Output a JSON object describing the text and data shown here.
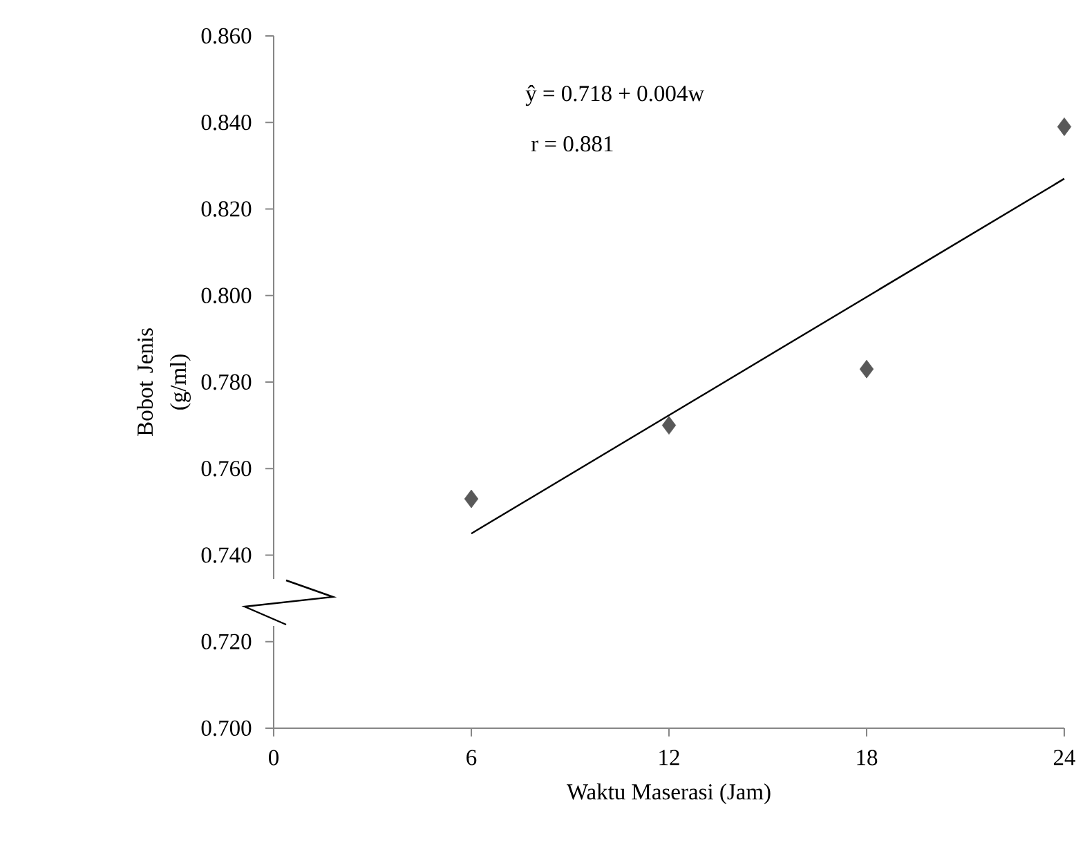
{
  "chart_data": {
    "type": "scatter",
    "xlabel": "Waktu Maserasi (Jam)",
    "ylabel": "Bobot Jenis (g/ml)",
    "x": [
      6,
      12,
      18,
      24
    ],
    "xlim": [
      0,
      24
    ],
    "xticks": [
      0,
      6,
      12,
      18,
      24
    ],
    "ylim": [
      0.7,
      0.86
    ],
    "yticks": [
      {
        "value": 0.7,
        "label": "0.700"
      },
      {
        "value": 0.72,
        "label": "0.720"
      },
      {
        "value": 0.74,
        "label": "0.740"
      },
      {
        "value": 0.76,
        "label": "0.760"
      },
      {
        "value": 0.78,
        "label": "0.780"
      },
      {
        "value": 0.8,
        "label": "0.800"
      },
      {
        "value": 0.82,
        "label": "0.820"
      },
      {
        "value": 0.84,
        "label": "0.840"
      },
      {
        "value": 0.86,
        "label": "0.860"
      }
    ],
    "marker": "diamond",
    "grid": false,
    "annotations": [
      "ŷ = 0.718 + 0.004w",
      "r = 0.881"
    ],
    "series": [
      {
        "color": "#595959",
        "values": [
          0.753,
          0.77,
          0.783,
          0.839
        ]
      },
      {
        "type": "line",
        "x": [
          6,
          24
        ],
        "values": [
          0.745,
          0.827
        ],
        "color": "#000000",
        "marker": "none",
        "line_style": "solid"
      }
    ]
  }
}
